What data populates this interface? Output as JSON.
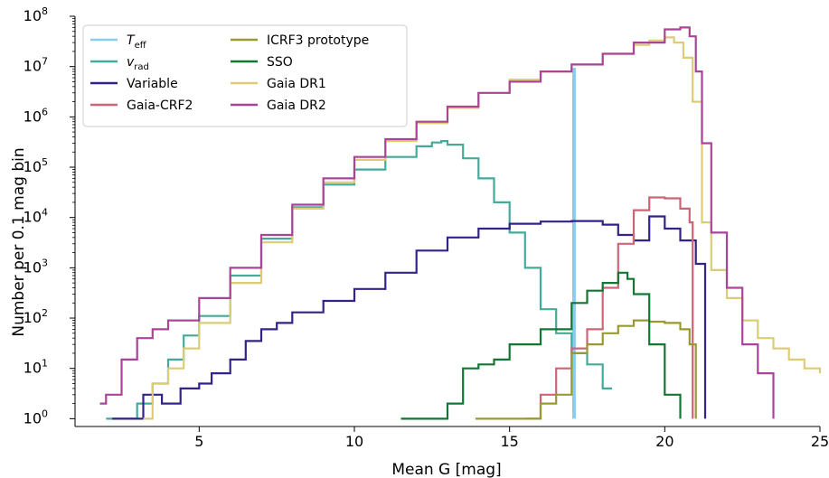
{
  "chart_data": {
    "type": "line",
    "xlabel": "Mean G [mag]",
    "ylabel": "Number per 0.1 mag bin",
    "xlim": [
      1,
      25
    ],
    "ylim": [
      0.7,
      100000000
    ],
    "yscale": "log",
    "x_ticks": [
      "5",
      "10",
      "15",
      "20",
      "25"
    ],
    "y_ticks": [
      "10^0",
      "10^1",
      "10^2",
      "10^3",
      "10^4",
      "10^5",
      "10^6",
      "10^7",
      "10^8"
    ],
    "grid": false,
    "legend_position": "top-left",
    "series": [
      {
        "name": "T_eff",
        "color": "#88ccee",
        "x": [
          17.05,
          17.05,
          17.1,
          17.1
        ],
        "y": [
          1,
          9000000,
          9000000,
          1
        ]
      },
      {
        "name": "v_rad",
        "color": "#44aa99",
        "x": [
          2.0,
          2.5,
          3.0,
          3.5,
          4.0,
          4.5,
          5.0,
          6.0,
          7.0,
          8.0,
          9.0,
          10.0,
          11.0,
          12.0,
          12.5,
          12.8,
          13.0,
          13.5,
          14.0,
          14.5,
          15.0,
          15.5,
          16.0,
          16.5,
          17.0,
          17.5,
          18.0,
          18.3
        ],
        "y": [
          1,
          1,
          2,
          5,
          15,
          45,
          110,
          700,
          3800,
          16000,
          45000,
          90000,
          160000,
          260000,
          310000,
          330000,
          280000,
          150000,
          60000,
          20000,
          5000,
          1000,
          150,
          50,
          20,
          12,
          4,
          4
        ]
      },
      {
        "name": "Variable",
        "color": "#332288",
        "x": [
          2.2,
          3.0,
          3.2,
          3.8,
          4.4,
          5.0,
          5.4,
          6.0,
          6.5,
          7.0,
          7.5,
          8.0,
          9.0,
          10.0,
          11.0,
          12.0,
          13.0,
          14.0,
          15.0,
          16.0,
          17.0,
          18.0,
          18.5,
          19.0,
          19.5,
          20.0,
          20.5,
          21.0,
          21.3
        ],
        "y": [
          1,
          1,
          3,
          2,
          4,
          5,
          8,
          15,
          35,
          60,
          80,
          130,
          220,
          380,
          800,
          2200,
          4000,
          6000,
          7500,
          8300,
          8500,
          7200,
          4500,
          3500,
          10500,
          6000,
          3500,
          1200,
          1
        ]
      },
      {
        "name": "Gaia-CRF2",
        "color": "#cc6677",
        "x": [
          15.5,
          16.0,
          16.5,
          17.0,
          17.5,
          18.0,
          18.5,
          19.0,
          19.5,
          20.0,
          20.5,
          20.8,
          20.9
        ],
        "y": [
          1,
          3,
          10,
          25,
          60,
          400,
          3000,
          14000,
          25000,
          24000,
          15000,
          8000,
          1
        ]
      },
      {
        "name": "ICRF3 prototype",
        "color": "#999933",
        "x": [
          13.9,
          15.0,
          16.0,
          16.5,
          17.0,
          17.5,
          18.0,
          18.5,
          19.0,
          19.5,
          20.0,
          20.5,
          20.8,
          21.0
        ],
        "y": [
          1,
          1,
          2,
          3,
          20,
          30,
          50,
          70,
          90,
          85,
          80,
          60,
          30,
          1
        ]
      },
      {
        "name": "SSO",
        "color": "#117733",
        "x": [
          11.5,
          12.5,
          13.0,
          13.5,
          14.0,
          14.5,
          15.0,
          16.0,
          17.0,
          17.5,
          18.0,
          18.5,
          18.8,
          19.0,
          19.5,
          20.0,
          20.5
        ],
        "y": [
          1,
          1,
          2,
          10,
          12,
          15,
          30,
          60,
          200,
          350,
          500,
          800,
          600,
          300,
          30,
          3,
          1
        ]
      },
      {
        "name": "Gaia DR1",
        "color": "#ddcc77",
        "x": [
          3.2,
          3.5,
          4.0,
          4.5,
          5.0,
          6.0,
          7.0,
          8.0,
          9.0,
          10.0,
          11.0,
          12.0,
          13.0,
          14.0,
          15.0,
          16.0,
          17.0,
          18.0,
          19.0,
          19.5,
          20.0,
          20.3,
          20.6,
          20.9,
          21.2,
          21.5,
          22.0,
          22.5,
          23.0,
          23.5,
          24.0,
          24.5,
          25.0
        ],
        "y": [
          1,
          5,
          10,
          25,
          80,
          500,
          3200,
          15000,
          50000,
          140000,
          330000,
          750000,
          1500000,
          3000000,
          5500000,
          8000000,
          11000000,
          18000000,
          27000000,
          33000000,
          38000000,
          30000000,
          15000000,
          2000000,
          8000,
          900,
          250,
          90,
          40,
          25,
          15,
          10,
          8
        ]
      },
      {
        "name": "Gaia DR2",
        "color": "#aa4499",
        "x": [
          1.8,
          2.0,
          2.5,
          3.0,
          3.5,
          4.0,
          5.0,
          6.0,
          7.0,
          8.0,
          9.0,
          10.0,
          11.0,
          12.0,
          13.0,
          14.0,
          15.0,
          16.0,
          17.0,
          18.0,
          19.0,
          20.0,
          20.5,
          20.8,
          21.0,
          21.2,
          21.5,
          22.0,
          22.5,
          23.0,
          23.5
        ],
        "y": [
          2,
          3,
          15,
          40,
          60,
          90,
          250,
          1000,
          4500,
          18000,
          60000,
          160000,
          360000,
          800000,
          1600000,
          3000000,
          5000000,
          8000000,
          11000000,
          18000000,
          30000000,
          55000000,
          60000000,
          40000000,
          8000000,
          300000,
          5000,
          400,
          30,
          8,
          1
        ]
      }
    ]
  }
}
